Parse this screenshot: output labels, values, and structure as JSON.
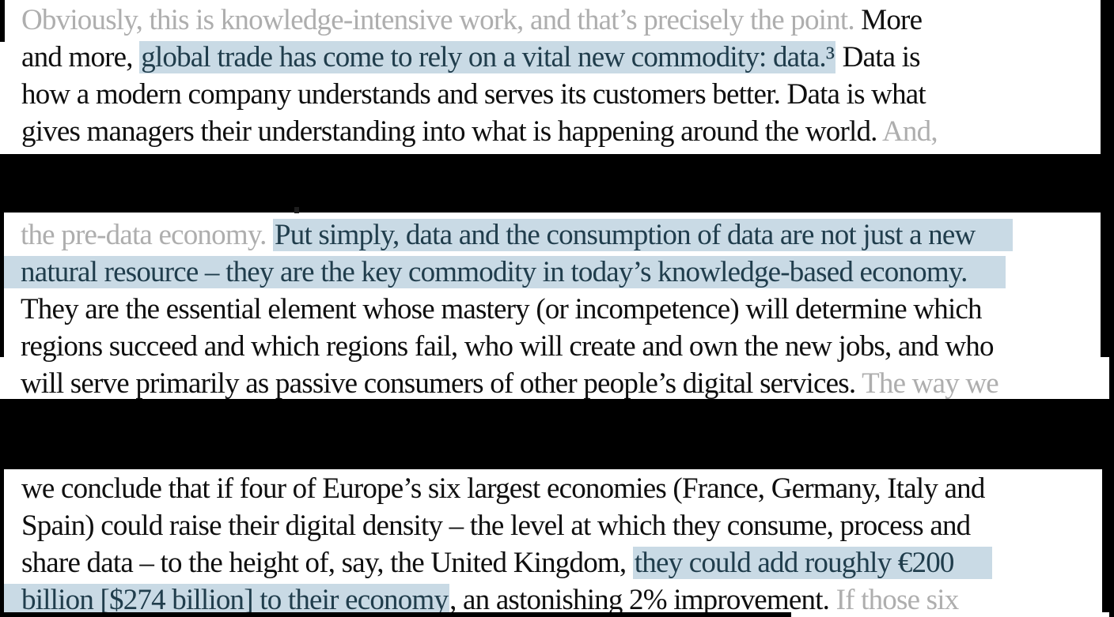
{
  "colors": {
    "bg": "#000000",
    "paper": "#ffffff",
    "ink": "#0f0f0f",
    "faded": "#aeaeae",
    "hl_bg": "#c9dae5",
    "hl_ink": "#203d4c"
  },
  "document": {
    "kind": "book-text-excerpt",
    "highlight_color_name": "light-blue-selection"
  },
  "blocks": [
    {
      "name": "paragraph-fragment-1",
      "lines": [
        {
          "segments": [
            {
              "text": "Obviously, this is knowledge-intensive work, and that’s precisely the point.",
              "style": "faded"
            },
            {
              "text": " More",
              "style": "normal"
            }
          ]
        },
        {
          "segments": [
            {
              "text": "and more, ",
              "style": "normal"
            },
            {
              "text": "global trade has come to rely on a vital new commodity: data.³",
              "style": "highlight"
            },
            {
              "text": " Data is",
              "style": "normal"
            }
          ]
        },
        {
          "segments": [
            {
              "text": "how a modern company understands and serves its customers better. Data is what",
              "style": "normal"
            }
          ]
        },
        {
          "segments": [
            {
              "text": "gives managers their understanding into what is happening around the world. ",
              "style": "normal"
            },
            {
              "text": "And,",
              "style": "faded"
            }
          ]
        }
      ]
    },
    {
      "name": "paragraph-fragment-2",
      "lines": [
        {
          "segments": [
            {
              "text": "the pre-data economy. ",
              "style": "faded"
            },
            {
              "text": "Put simply, data and the consumption of data are not just a new",
              "style": "highlight",
              "extend": "right"
            }
          ]
        },
        {
          "segments": [
            {
              "text": "natural resource – they are the key commodity in today’s knowledge-based economy.",
              "style": "highlight",
              "extend": "both"
            }
          ]
        },
        {
          "segments": [
            {
              "text": "They are the essential element whose mastery (or incompetence) will determine which",
              "style": "normal"
            }
          ]
        },
        {
          "segments": [
            {
              "text": "regions succeed and which regions fail, who will create and own the new jobs, and who",
              "style": "normal"
            }
          ]
        },
        {
          "segments": [
            {
              "text": "will serve primarily as passive consumers of other people’s digital services. ",
              "style": "normal"
            },
            {
              "text": "The way we",
              "style": "faded"
            }
          ]
        }
      ]
    },
    {
      "name": "paragraph-fragment-3",
      "lines": [
        {
          "segments": [
            {
              "text": "we conclude that if four of Europe’s six largest economies (France, Germany, Italy and",
              "style": "normal"
            }
          ]
        },
        {
          "segments": [
            {
              "text": "Spain) could raise their digital density – the level at which they consume, process and",
              "style": "normal"
            }
          ]
        },
        {
          "segments": [
            {
              "text": "share data – to the height of, say, the United Kingdom, ",
              "style": "normal"
            },
            {
              "text": "they could add roughly €200",
              "style": "highlight",
              "extend": "right"
            }
          ]
        },
        {
          "segments": [
            {
              "text": "billion [$274 billion] to their economy",
              "style": "highlight",
              "extend": "left"
            },
            {
              "text": ", an astonishing 2% improvement. ",
              "style": "normal"
            },
            {
              "text": "If those six",
              "style": "faded"
            }
          ]
        }
      ]
    }
  ]
}
